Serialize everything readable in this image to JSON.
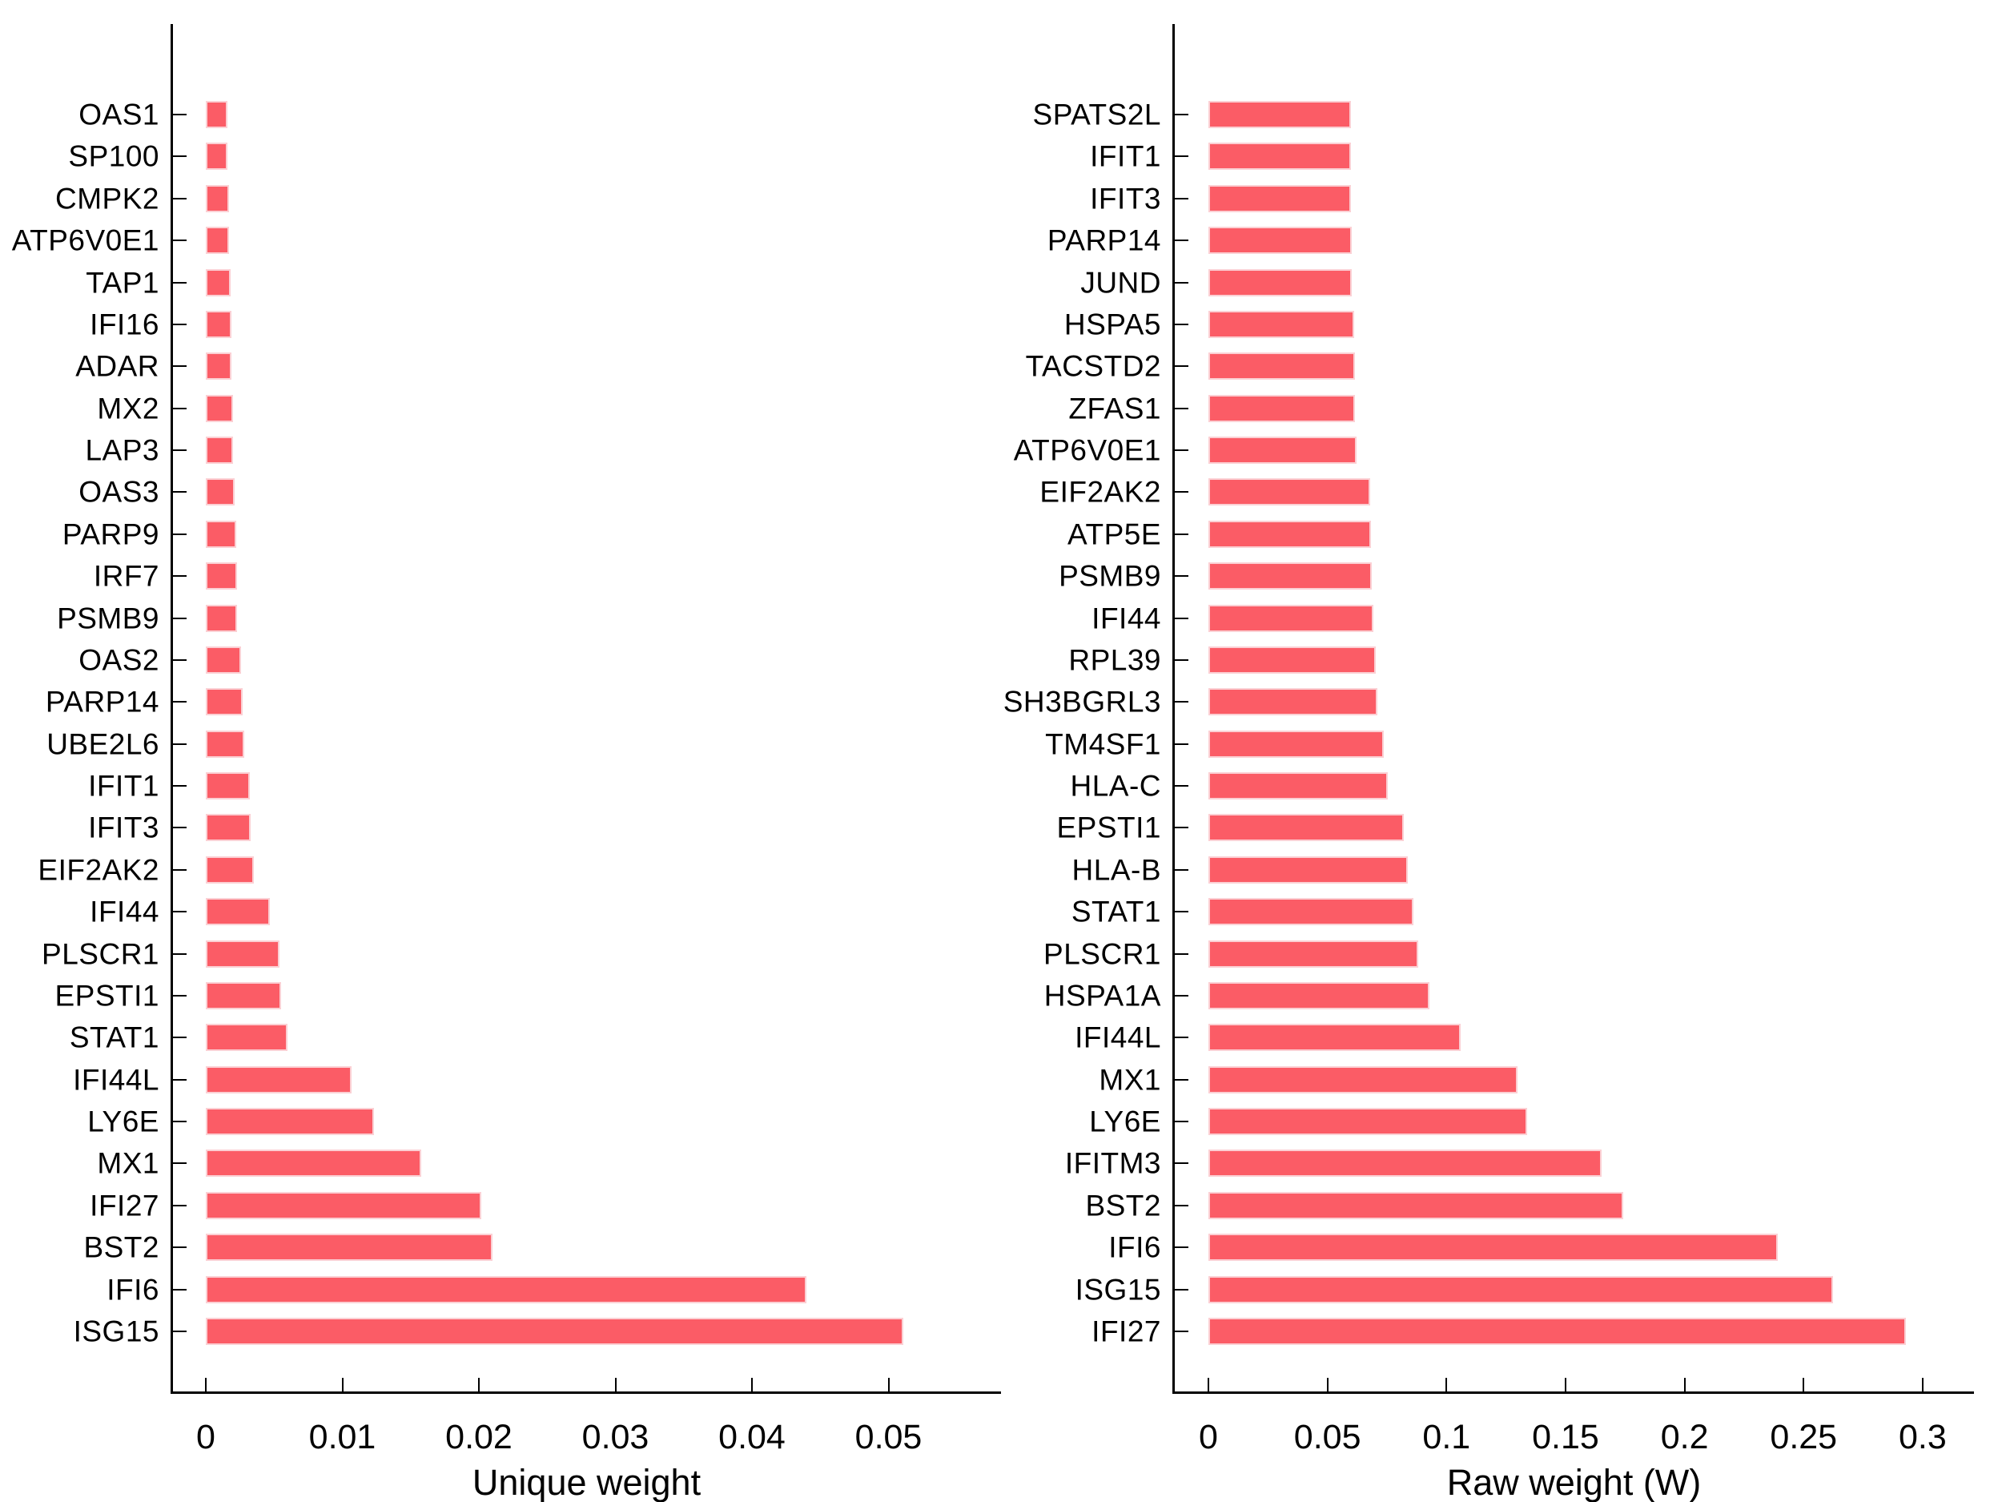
{
  "figure": {
    "background": "#ffffff",
    "bar_color": "#fb5c66",
    "bar_edge_color": "#fbd0d4",
    "axis_color": "#000000",
    "text_color": "#000000"
  },
  "chart_data": [
    {
      "type": "bar",
      "orientation": "horizontal",
      "title": "",
      "xlabel": "Unique weight",
      "ylabel": "",
      "grid": false,
      "legend": false,
      "category_order": "top_to_bottom_ascending",
      "categories": [
        "OAS1",
        "SP100",
        "CMPK2",
        "ATP6V0E1",
        "TAP1",
        "IFI16",
        "ADAR",
        "MX2",
        "LAP3",
        "OAS3",
        "PARP9",
        "IRF7",
        "PSMB9",
        "OAS2",
        "PARP14",
        "UBE2L6",
        "IFIT1",
        "IFIT3",
        "EIF2AK2",
        "IFI44",
        "PLSCR1",
        "EPSTI1",
        "STAT1",
        "IFI44L",
        "LY6E",
        "MX1",
        "IFI27",
        "BST2",
        "IFI6",
        "ISG15"
      ],
      "values": [
        0.0016,
        0.0016,
        0.0017,
        0.0017,
        0.0018,
        0.0019,
        0.0019,
        0.002,
        0.002,
        0.0021,
        0.0022,
        0.0023,
        0.0023,
        0.0026,
        0.0027,
        0.0028,
        0.0032,
        0.0033,
        0.0035,
        0.0047,
        0.0054,
        0.0055,
        0.006,
        0.0107,
        0.0123,
        0.0158,
        0.0202,
        0.021,
        0.044,
        0.0511
      ],
      "xtick_values": [
        0,
        0.01,
        0.02,
        0.03,
        0.04,
        0.05
      ],
      "xtick_labels": [
        "0",
        "0.01",
        "0.02",
        "0.03",
        "0.04",
        "0.05"
      ],
      "xlim": [
        -0.0025,
        0.0582
      ]
    },
    {
      "type": "bar",
      "orientation": "horizontal",
      "title": "",
      "xlabel": "Raw weight (W)",
      "ylabel": "",
      "grid": false,
      "legend": false,
      "category_order": "top_to_bottom_ascending",
      "categories": [
        "SPATS2L",
        "IFIT1",
        "IFIT3",
        "PARP14",
        "JUND",
        "HSPA5",
        "TACSTD2",
        "ZFAS1",
        "ATP6V0E1",
        "EIF2AK2",
        "ATP5E",
        "PSMB9",
        "IFI44",
        "RPL39",
        "SH3BGRL3",
        "TM4SF1",
        "HLA-C",
        "EPSTI1",
        "HLA-B",
        "STAT1",
        "PLSCR1",
        "HSPA1A",
        "IFI44L",
        "MX1",
        "LY6E",
        "IFITM3",
        "BST2",
        "IFI6",
        "ISG15",
        "IFI27"
      ],
      "values": [
        0.0598,
        0.0599,
        0.06,
        0.0602,
        0.0603,
        0.0612,
        0.0614,
        0.0617,
        0.0621,
        0.068,
        0.0682,
        0.0685,
        0.0692,
        0.0703,
        0.071,
        0.0737,
        0.0754,
        0.0821,
        0.0838,
        0.086,
        0.0881,
        0.0928,
        0.106,
        0.1297,
        0.1338,
        0.1653,
        0.1742,
        0.239,
        0.2623,
        0.293
      ],
      "xtick_values": [
        0,
        0.05,
        0.1,
        0.15,
        0.2,
        0.25,
        0.3
      ],
      "xtick_labels": [
        "0",
        "0.05",
        "0.1",
        "0.15",
        "0.2",
        "0.25",
        "0.3"
      ],
      "xlim": [
        -0.0145,
        0.3215
      ]
    }
  ]
}
